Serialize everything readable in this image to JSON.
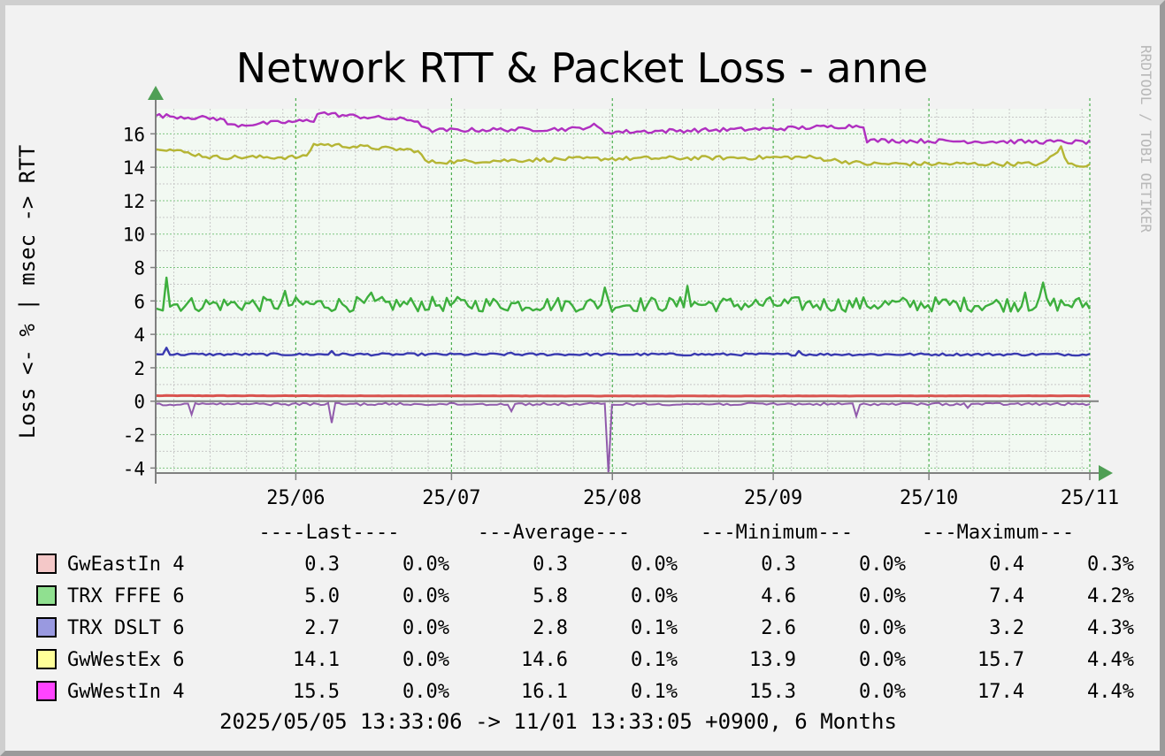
{
  "chart_data": {
    "type": "line",
    "title": "Network RTT & Packet Loss - anne",
    "ylabel": "Loss <- % | msec -> RTT",
    "watermark": "RRDTOOL / TOBI OETIKER",
    "ylim": [
      -4.3,
      17.5
    ],
    "yticks": [
      -4,
      -2,
      0,
      2,
      4,
      6,
      8,
      10,
      12,
      14,
      16
    ],
    "xlim": [
      "2025-05-05",
      "2025-11-01"
    ],
    "xticks": [
      {
        "label": "25/06",
        "date": "2025-06-01"
      },
      {
        "label": "25/07",
        "date": "2025-07-01"
      },
      {
        "label": "25/08",
        "date": "2025-08-01"
      },
      {
        "label": "25/09",
        "date": "2025-09-01"
      },
      {
        "label": "25/10",
        "date": "2025-10-01"
      },
      {
        "label": "25/11",
        "date": "2025-11-01"
      }
    ],
    "grid": true,
    "colors": {
      "background": "#f2f2f2",
      "canvas": "#f2f9f2",
      "grid": "#4caf50",
      "axis": "#808080",
      "arrow": "#4f9f55"
    },
    "legend_header": [
      "----Last----",
      "---Average---",
      "---Minimum---",
      "---Maximum---"
    ],
    "series": [
      {
        "name": "GwEastIn 4",
        "color": "#d9534f",
        "swatch": "#f4c8c8",
        "stats": [
          "0.3",
          "0.0%",
          "0.3",
          "0.0%",
          "0.3",
          "0.0%",
          "0.4",
          "0.3%"
        ],
        "rtt_base": 0.32,
        "rtt_segments": [
          [
            0,
            0.33
          ],
          [
            0.5,
            0.31
          ],
          [
            1.0,
            0.32
          ]
        ]
      },
      {
        "name": "TRX FFFE 6",
        "color": "#3daf3d",
        "swatch": "#90e090",
        "stats": [
          "5.0",
          "0.0%",
          "5.8",
          "0.0%",
          "4.6",
          "0.0%",
          "7.4",
          "4.2%"
        ],
        "rtt_base": 5.8,
        "rtt_noise": 0.45,
        "rtt_spikes": [
          [
            0.01,
            7.4
          ],
          [
            0.14,
            6.6
          ],
          [
            0.23,
            6.5
          ],
          [
            0.48,
            6.8
          ],
          [
            0.57,
            6.9
          ],
          [
            0.93,
            6.5
          ],
          [
            0.95,
            7.1
          ]
        ]
      },
      {
        "name": "TRX DSLT 6",
        "color": "#3a3ab0",
        "swatch": "#9999e0",
        "stats": [
          "2.7",
          "0.0%",
          "2.8",
          "0.1%",
          "2.6",
          "0.0%",
          "3.2",
          "4.3%"
        ],
        "rtt_base": 2.8,
        "rtt_noise": 0.07,
        "rtt_spikes": [
          [
            0.01,
            3.2
          ],
          [
            0.19,
            3.0
          ],
          [
            0.38,
            2.9
          ],
          [
            0.69,
            3.0
          ]
        ]
      },
      {
        "name": "GwWestEx 6",
        "color": "#b5b534",
        "swatch": "#ffff99",
        "stats": [
          "14.1",
          "0.0%",
          "14.6",
          "0.1%",
          "13.9",
          "0.0%",
          "15.7",
          "4.4%"
        ],
        "rtt_segments": [
          [
            0,
            15.2
          ],
          [
            0.06,
            14.6
          ],
          [
            0.16,
            14.6
          ],
          [
            0.17,
            15.4
          ],
          [
            0.28,
            15.0
          ],
          [
            0.29,
            14.3
          ],
          [
            0.45,
            14.5
          ],
          [
            0.7,
            14.6
          ],
          [
            0.76,
            14.2
          ],
          [
            0.95,
            14.2
          ],
          [
            0.97,
            15.2
          ],
          [
            0.975,
            14.2
          ],
          [
            1.0,
            14.1
          ]
        ]
      },
      {
        "name": "GwWestIn 4",
        "color": "#b030c0",
        "swatch": "#ff44ff",
        "stats": [
          "15.5",
          "0.0%",
          "16.1",
          "0.1%",
          "15.3",
          "0.0%",
          "17.4",
          "4.4%"
        ],
        "rtt_segments": [
          [
            0,
            17.1
          ],
          [
            0.07,
            16.9
          ],
          [
            0.08,
            16.5
          ],
          [
            0.17,
            16.8
          ],
          [
            0.17,
            17.3
          ],
          [
            0.2,
            17.1
          ],
          [
            0.28,
            16.8
          ],
          [
            0.29,
            16.2
          ],
          [
            0.45,
            16.3
          ],
          [
            0.47,
            16.5
          ],
          [
            0.48,
            16.1
          ],
          [
            0.66,
            16.3
          ],
          [
            0.76,
            16.5
          ],
          [
            0.76,
            15.6
          ],
          [
            1.0,
            15.5
          ]
        ]
      }
    ],
    "loss_spikes": [
      [
        0.04,
        -0.8
      ],
      [
        0.19,
        -1.3
      ],
      [
        0.38,
        -0.6
      ],
      [
        0.485,
        -4.3
      ],
      [
        0.75,
        -0.9
      ],
      [
        0.87,
        -0.4
      ]
    ],
    "footer": "2025/05/05 13:33:06 -> 11/01 13:33:05 +0900, 6 Months"
  }
}
